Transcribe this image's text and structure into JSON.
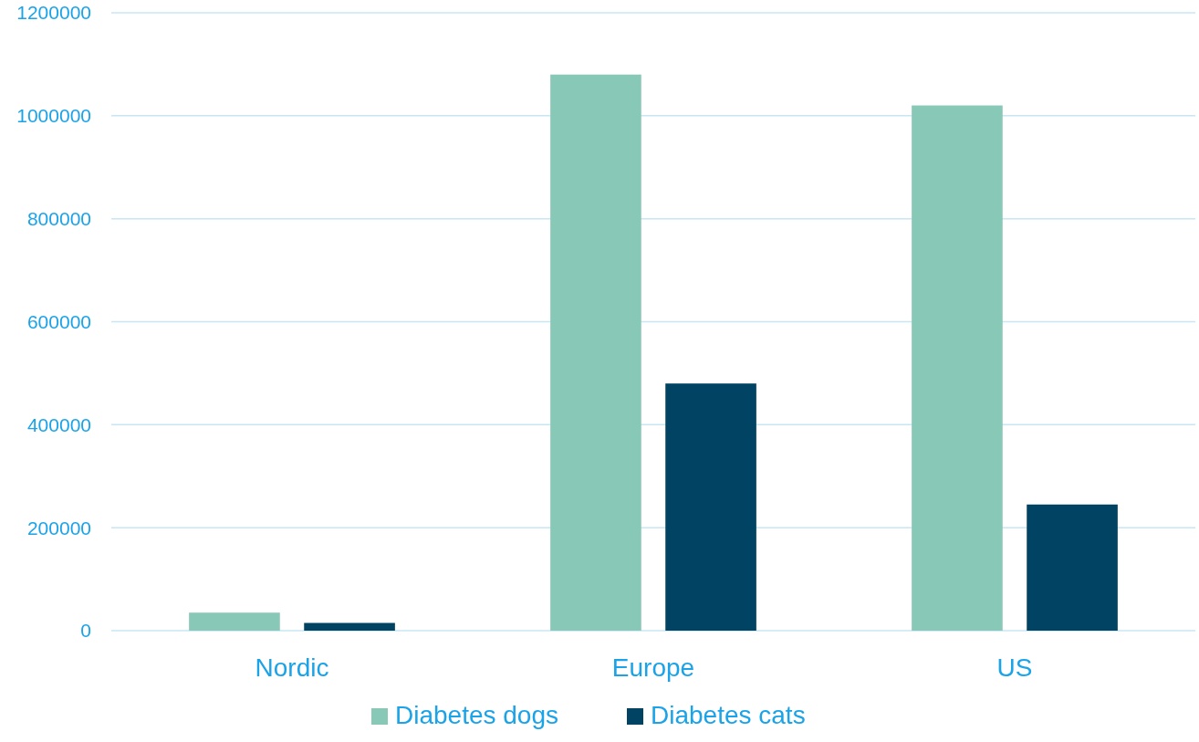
{
  "chart_data": {
    "type": "bar",
    "categories": [
      "Nordic",
      "Europe",
      "US"
    ],
    "series": [
      {
        "name": "Diabetes dogs",
        "color": "#88c8b6",
        "values": [
          35000,
          1080000,
          1020000
        ]
      },
      {
        "name": "Diabetes cats",
        "color": "#004363",
        "values": [
          15000,
          480000,
          245000
        ]
      }
    ],
    "ylim": [
      0,
      1200000
    ],
    "yticks": [
      0,
      200000,
      400000,
      600000,
      800000,
      1000000,
      1200000
    ],
    "grid": "y",
    "legend": "bottom"
  }
}
